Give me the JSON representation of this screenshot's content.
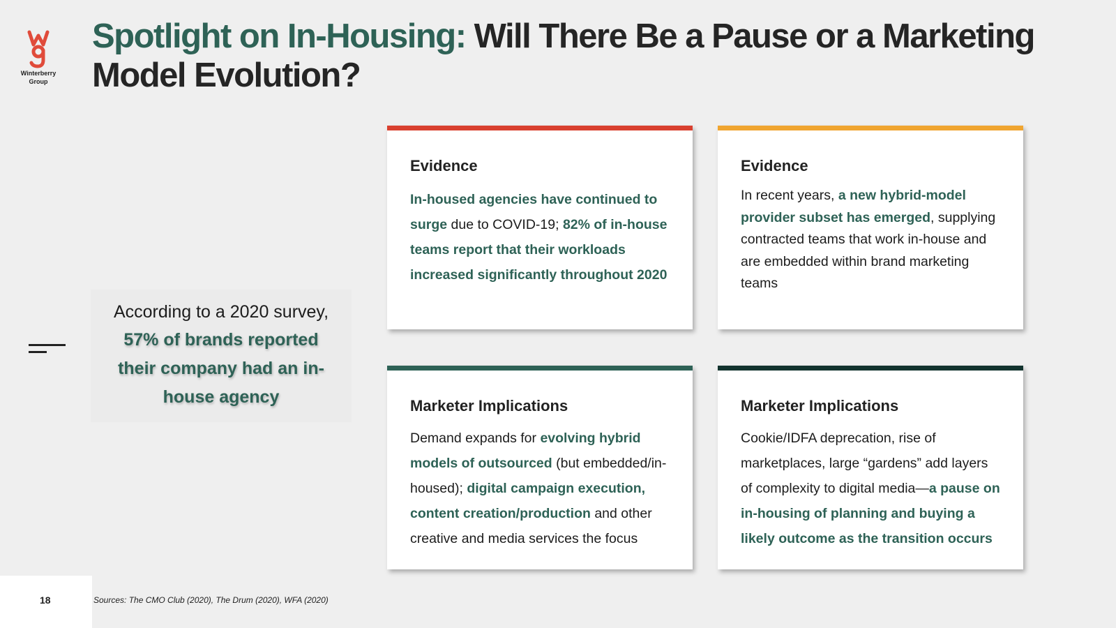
{
  "logo": {
    "mark": "wg",
    "line1": "Winterberry",
    "line2": "Group",
    "icon": "winterberry-logo-icon",
    "color": "#e04b3a"
  },
  "title": {
    "accent": "Spotlight on In-Housing:",
    "rest": " Will There Be a Pause or a Marketing Model Evolution?"
  },
  "quote": {
    "lead": "According to a 2020 survey,",
    "stat": "57% of brands reported their company had an in-house agency"
  },
  "cards": [
    {
      "heading": "Evidence",
      "bar_color": "#d9402f",
      "s1": "In-housed agencies have continued to surge",
      "s2": " due to COVID-19; ",
      "s3": "82% of in-house teams report that their workloads increased significantly throughout 2020"
    },
    {
      "heading": "Evidence",
      "bar_color": "#f0a530",
      "s1": "In recent years, ",
      "s2": "a new hybrid-model provider subset has emerged",
      "s3": ", supplying contracted teams that work in-house and are embedded within brand marketing teams"
    },
    {
      "heading": "Marketer Implications",
      "bar_color": "#2e6256",
      "s1": "Demand expands for ",
      "s2": "evolving hybrid models of outsourced",
      "s3": " (but embedded/in-housed); ",
      "s4": "digital campaign execution, content creation/production",
      "s5": " and other creative and media services the focus"
    },
    {
      "heading": "Marketer Implications",
      "bar_color": "#12332e",
      "s1": "Cookie/IDFA deprecation, rise of marketplaces, large “gardens” add layers of complexity to digital media—",
      "s2": "a pause on in-housing of planning and buying a likely outcome as the transition occurs"
    }
  ],
  "footer": {
    "page_number": "18",
    "sources": "Sources: The CMO Club (2020), The Drum (2020), WFA (2020)"
  },
  "colors": {
    "accent": "#2e6256",
    "background": "#efefef"
  }
}
